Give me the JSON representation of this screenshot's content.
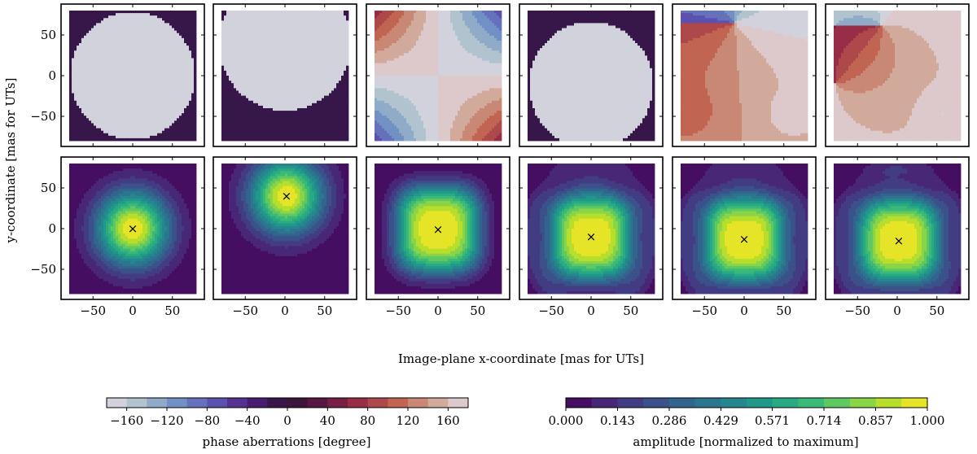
{
  "chart_data": {
    "type": "heatmap",
    "ylabel": "y-coordinate [mas for UTs]",
    "xlabel": "Image-plane x-coordinate [mas for UTs]",
    "xlim": [
      -80,
      80
    ],
    "ylim": [
      -80,
      80
    ],
    "x_ticks": [
      "−50",
      "0",
      "50"
    ],
    "y_ticks": [
      "50",
      "0",
      "−50"
    ],
    "x_tick_values": [
      -50,
      0,
      50
    ],
    "y_tick_values": [
      50,
      0,
      -50
    ],
    "phase_panels": [
      {
        "pattern": "disk",
        "cx": 0,
        "cy": 0,
        "r": 78
      },
      {
        "pattern": "disk",
        "cx": 0,
        "cy": 40,
        "r": 83
      },
      {
        "pattern": "saddle"
      },
      {
        "pattern": "disk",
        "cx": 0,
        "cy": -12,
        "r": 78
      },
      {
        "pattern": "vortex"
      },
      {
        "pattern": "vortex-offset"
      }
    ],
    "amplitude_peaks": [
      {
        "x": 0,
        "y": 0
      },
      {
        "x": 2,
        "y": 40
      },
      {
        "x": 0,
        "y": -1
      },
      {
        "x": 0,
        "y": -10
      },
      {
        "x": 0,
        "y": -13
      },
      {
        "x": 2,
        "y": -15
      }
    ],
    "colorbar_phase": {
      "label": "phase aberrations [degree]",
      "ticks": [
        "−160",
        "−120",
        "−80",
        "−40",
        "0",
        "40",
        "80",
        "120",
        "160"
      ],
      "tick_values": [
        -160,
        -120,
        -80,
        -40,
        0,
        40,
        80,
        120,
        160
      ],
      "range": [
        -180,
        180
      ],
      "levels": 18,
      "colormap": "twilight"
    },
    "colorbar_amp": {
      "label": "amplitude [normalized to maximum]",
      "ticks": [
        "0.000",
        "0.143",
        "0.286",
        "0.429",
        "0.571",
        "0.714",
        "0.857",
        "1.000"
      ],
      "tick_values": [
        0,
        0.143,
        0.286,
        0.429,
        0.571,
        0.714,
        0.857,
        1.0
      ],
      "range": [
        0,
        1
      ],
      "levels": 14,
      "colormap": "viridis"
    }
  }
}
